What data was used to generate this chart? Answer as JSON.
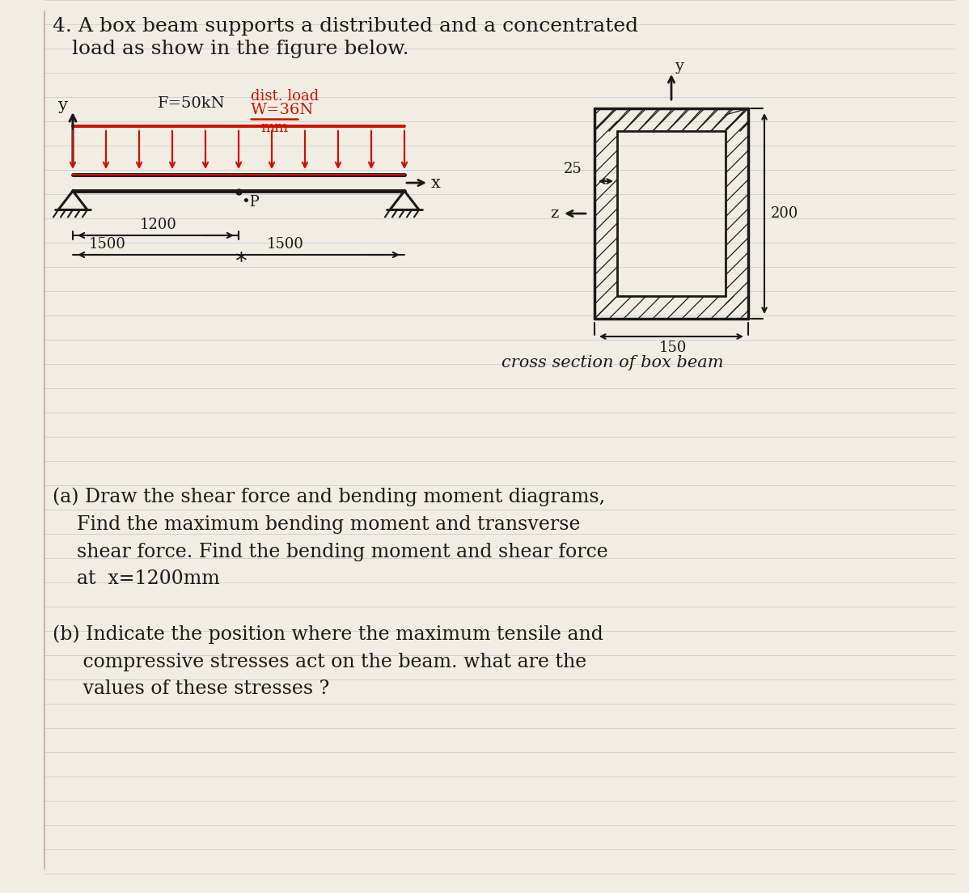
{
  "bg_color": "#f2ede3",
  "line_color": "#1a1a1a",
  "red_color": "#cc1100",
  "ruled_color": "#c5cfd8",
  "margin_color": "#d4a0a0",
  "title_line1": "4. A box beam supports a distributed and a concentrated",
  "title_line2": "   load as show in the figure below.",
  "beam_label_F": "F=50kN",
  "beam_label_distload": "dist. load",
  "beam_label_W": "W=36N",
  "beam_label_mm": "mm",
  "label_y_beam": "y",
  "label_x_beam": "x",
  "label_y_cross": "y",
  "label_z_cross": "z",
  "dim_1200": "1200",
  "dim_1500a": "1500",
  "dim_1500b": "1500",
  "label_25": "25",
  "label_200": "200",
  "label_150": "150",
  "cross_label": "cross section of box beam",
  "part_a_1": "(a) Draw the shear force and bending moment diagrams,",
  "part_a_2": "    Find the maximum bending moment and transverse",
  "part_a_3": "    shear force. Find the bending moment and shear force",
  "part_a_4": "    at  x=1200mm",
  "part_b_1": "(b) Indicate the position where the maximum tensile and",
  "part_b_2": "     compressive stresses act on the beam. what are the",
  "part_b_3": "     values of these stresses ?"
}
